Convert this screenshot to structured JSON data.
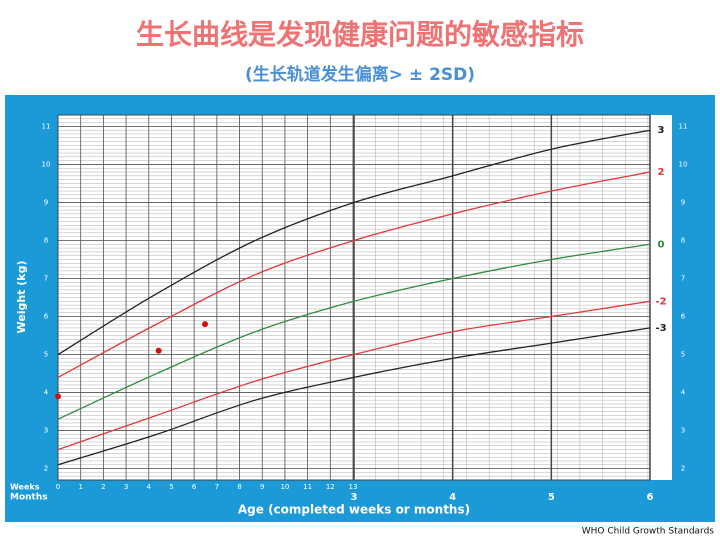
{
  "chart_data": {
    "type": "line",
    "title": "生长曲线是发现健康问题的敏感指标",
    "subtitle": "(生长轨道发生偏离> ± 2SD)",
    "y_label": "Weight (kg)",
    "x_label": "Age (completed weeks or months)",
    "x_weeks_label": "Weeks",
    "x_months_label": "Months",
    "source": "WHO Child Growth Standards",
    "x": [
      0,
      1,
      2,
      3,
      4,
      5,
      6
    ],
    "xlim": [
      0,
      6
    ],
    "ylim": [
      1.7,
      11.3
    ],
    "yticks": [
      2,
      3,
      4,
      5,
      6,
      7,
      8,
      9,
      10,
      11
    ],
    "x_weeks_ticks": [
      0,
      {
        "value": 0.23,
        "label": "1"
      },
      {
        "value": 0.46,
        "label": "2"
      },
      {
        "value": 0.69,
        "label": "3"
      },
      {
        "value": 0.92,
        "label": "4"
      },
      {
        "value": 1.15,
        "label": "5"
      },
      {
        "value": 1.38,
        "label": "6"
      },
      {
        "value": 1.61,
        "label": "7"
      },
      {
        "value": 1.84,
        "label": "8"
      },
      {
        "value": 2.07,
        "label": "9"
      },
      {
        "value": 2.3,
        "label": "10"
      },
      {
        "value": 2.53,
        "label": "11"
      },
      {
        "value": 2.76,
        "label": "12"
      },
      {
        "value": 2.99,
        "label": "13"
      }
    ],
    "xticks": [
      3,
      4,
      5,
      6
    ],
    "grid": true,
    "series": [
      {
        "name": "3",
        "color": "#222222",
        "values": [
          5.0,
          6.6,
          8.0,
          9.0,
          9.7,
          10.4,
          10.9
        ]
      },
      {
        "name": "2",
        "color": "#e0383c",
        "values": [
          4.4,
          5.8,
          7.1,
          8.0,
          8.7,
          9.3,
          9.8
        ]
      },
      {
        "name": "0",
        "color": "#2e8b3e",
        "values": [
          3.3,
          4.5,
          5.6,
          6.4,
          7.0,
          7.5,
          7.9
        ]
      },
      {
        "name": "-2",
        "color": "#e0383c",
        "values": [
          2.5,
          3.4,
          4.3,
          5.0,
          5.6,
          6.0,
          6.4
        ]
      },
      {
        "name": "-3",
        "color": "#222222",
        "values": [
          2.1,
          2.9,
          3.8,
          4.4,
          4.9,
          5.3,
          5.7
        ]
      }
    ],
    "points": {
      "type": "scatter",
      "color": "#cc1111",
      "x": [
        0,
        1.02,
        1.49
      ],
      "values": [
        3.9,
        5.1,
        5.8
      ]
    }
  }
}
